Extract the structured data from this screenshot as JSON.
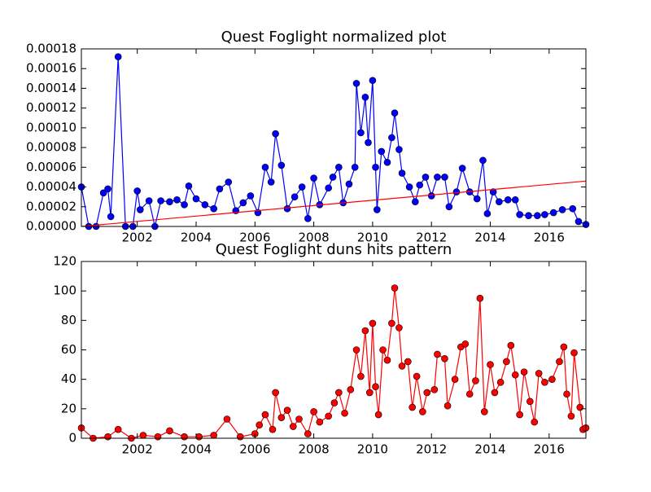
{
  "chart_data": [
    {
      "type": "line",
      "title": "Quest Foglight normalized plot",
      "xlim": [
        2000.1,
        2017.25
      ],
      "xticks": [
        2002,
        2004,
        2006,
        2008,
        2010,
        2012,
        2014,
        2016
      ],
      "ylim": [
        0,
        0.00018
      ],
      "yticks": [
        {
          "value": 0,
          "label": "0.00000"
        },
        {
          "value": 2e-05,
          "label": "0.00002"
        },
        {
          "value": 4e-05,
          "label": "0.00004"
        },
        {
          "value": 6e-05,
          "label": "0.00006"
        },
        {
          "value": 8e-05,
          "label": "0.00008"
        },
        {
          "value": 0.0001,
          "label": "0.00010"
        },
        {
          "value": 0.00012,
          "label": "0.00012"
        },
        {
          "value": 0.00014,
          "label": "0.00014"
        },
        {
          "value": 0.00016,
          "label": "0.00016"
        },
        {
          "value": 0.00018,
          "label": "0.00018"
        }
      ],
      "series": [
        {
          "color": "#0000ff",
          "markers": true,
          "x": [
            2000.1,
            2000.35,
            2000.6,
            2000.85,
            2001.0,
            2001.1,
            2001.35,
            2001.6,
            2001.85,
            2002.0,
            2002.1,
            2002.4,
            2002.6,
            2002.8,
            2003.1,
            2003.35,
            2003.6,
            2003.75,
            2004.0,
            2004.3,
            2004.6,
            2004.8,
            2005.1,
            2005.35,
            2005.6,
            2005.85,
            2006.1,
            2006.35,
            2006.55,
            2006.7,
            2006.9,
            2007.1,
            2007.35,
            2007.6,
            2007.8,
            2008.0,
            2008.2,
            2008.5,
            2008.65,
            2008.85,
            2009.0,
            2009.2,
            2009.4,
            2009.45,
            2009.6,
            2009.75,
            2009.85,
            2010.0,
            2010.1,
            2010.15,
            2010.3,
            2010.5,
            2010.65,
            2010.75,
            2010.9,
            2011.0,
            2011.25,
            2011.45,
            2011.6,
            2011.8,
            2012.0,
            2012.2,
            2012.45,
            2012.6,
            2012.85,
            2013.05,
            2013.3,
            2013.55,
            2013.75,
            2013.9,
            2014.1,
            2014.3,
            2014.6,
            2014.85,
            2015.0,
            2015.3,
            2015.6,
            2015.85,
            2016.15,
            2016.45,
            2016.8,
            2017.0,
            2017.25
          ],
          "values": [
            4e-05,
            0,
            0,
            3.4e-05,
            3.8e-05,
            1e-05,
            0.000172,
            0,
            0,
            3.6e-05,
            1.7e-05,
            2.6e-05,
            0,
            2.6e-05,
            2.5e-05,
            2.7e-05,
            2.2e-05,
            4.1e-05,
            2.8e-05,
            2.2e-05,
            1.8e-05,
            3.8e-05,
            4.5e-05,
            1.6e-05,
            2.4e-05,
            3.1e-05,
            1.4e-05,
            6e-05,
            4.5e-05,
            9.4e-05,
            6.2e-05,
            1.8e-05,
            3e-05,
            4e-05,
            8e-06,
            4.9e-05,
            2.2e-05,
            3.9e-05,
            5e-05,
            6e-05,
            2.4e-05,
            4.3e-05,
            6e-05,
            0.000145,
            9.5e-05,
            0.000131,
            8.5e-05,
            0.000148,
            6e-05,
            1.7e-05,
            7.6e-05,
            6.5e-05,
            9e-05,
            0.000115,
            7.8e-05,
            5.4e-05,
            4e-05,
            2.5e-05,
            4.2e-05,
            5e-05,
            3.1e-05,
            5e-05,
            5e-05,
            2e-05,
            3.5e-05,
            5.9e-05,
            3.5e-05,
            2.8e-05,
            6.7e-05,
            1.3e-05,
            3.5e-05,
            2.5e-05,
            2.7e-05,
            2.7e-05,
            1.2e-05,
            1.1e-05,
            1.1e-05,
            1.2e-05,
            1.4e-05,
            1.7e-05,
            1.8e-05,
            5e-06,
            2e-06
          ]
        },
        {
          "color": "#ff0000",
          "markers": false,
          "x": [
            2000.1,
            2017.25
          ],
          "values": [
            0,
            4.6e-05
          ]
        }
      ]
    },
    {
      "type": "line",
      "title": "Quest Foglight duns hits pattern",
      "xlim": [
        2000.1,
        2017.25
      ],
      "xticks": [
        2002,
        2004,
        2006,
        2008,
        2010,
        2012,
        2014,
        2016
      ],
      "ylim": [
        0,
        120
      ],
      "yticks": [
        0,
        20,
        40,
        60,
        80,
        100,
        120
      ],
      "series": [
        {
          "color": "#ff0000",
          "markers": true,
          "x": [
            2000.1,
            2000.5,
            2001.0,
            2001.35,
            2001.8,
            2002.2,
            2002.7,
            2003.1,
            2003.6,
            2004.1,
            2004.6,
            2005.05,
            2005.5,
            2006.0,
            2006.15,
            2006.35,
            2006.6,
            2006.7,
            2006.9,
            2007.1,
            2007.3,
            2007.5,
            2007.8,
            2008.0,
            2008.2,
            2008.5,
            2008.7,
            2008.85,
            2009.05,
            2009.25,
            2009.45,
            2009.6,
            2009.75,
            2009.9,
            2010.0,
            2010.1,
            2010.2,
            2010.35,
            2010.5,
            2010.65,
            2010.75,
            2010.9,
            2011.0,
            2011.2,
            2011.35,
            2011.5,
            2011.7,
            2011.85,
            2012.1,
            2012.2,
            2012.45,
            2012.55,
            2012.8,
            2013.0,
            2013.15,
            2013.3,
            2013.5,
            2013.65,
            2013.8,
            2014.0,
            2014.15,
            2014.35,
            2014.55,
            2014.7,
            2014.85,
            2015.0,
            2015.15,
            2015.35,
            2015.5,
            2015.65,
            2015.85,
            2016.1,
            2016.35,
            2016.5,
            2016.6,
            2016.75,
            2016.85,
            2017.05,
            2017.15,
            2017.25
          ],
          "values": [
            7,
            0,
            1,
            6,
            0,
            2,
            1,
            5,
            1,
            1,
            2,
            13,
            1,
            3,
            9,
            16,
            6,
            31,
            14,
            19,
            8,
            13,
            3,
            18,
            11,
            15,
            24,
            31,
            17,
            33,
            60,
            42,
            73,
            31,
            78,
            35,
            16,
            60,
            53,
            78,
            102,
            75,
            49,
            52,
            21,
            42,
            18,
            31,
            33,
            57,
            54,
            22,
            40,
            62,
            64,
            30,
            39,
            95,
            18,
            50,
            31,
            38,
            52,
            63,
            43,
            16,
            45,
            25,
            11,
            44,
            38,
            40,
            52,
            62,
            30,
            15,
            58,
            21,
            6,
            7
          ]
        }
      ]
    }
  ]
}
